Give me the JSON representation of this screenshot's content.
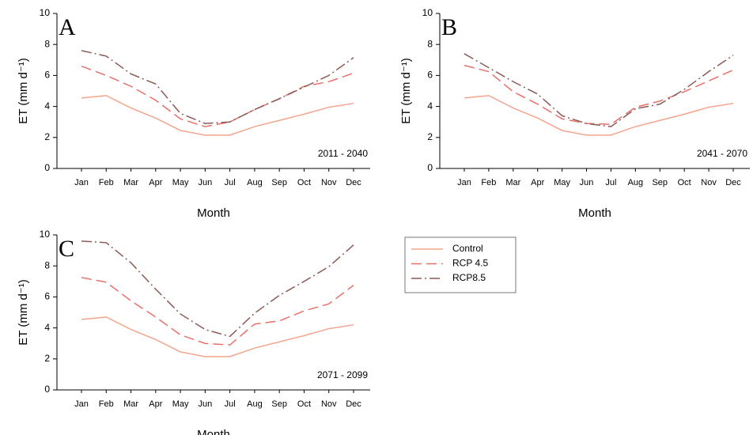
{
  "chart_data": [
    {
      "type": "line",
      "panel_label": "A",
      "period": "2011 - 2040",
      "xlabel": "Month",
      "ylabel": "ET (mm d⁻¹)",
      "categories": [
        "Jan",
        "Feb",
        "Mar",
        "Apr",
        "May",
        "Jun",
        "Jul",
        "Aug",
        "Sep",
        "Oct",
        "Nov",
        "Dec"
      ],
      "ylim": [
        0,
        10
      ],
      "yticks": [
        0,
        2,
        4,
        6,
        8,
        10
      ],
      "series": [
        {
          "name": "Control",
          "color": "#f4a58f",
          "style": "solid",
          "values": [
            4.55,
            4.7,
            3.9,
            3.25,
            2.45,
            2.15,
            2.15,
            2.7,
            3.1,
            3.5,
            3.95,
            4.2
          ]
        },
        {
          "name": "RCP 4.5",
          "color": "#e8706a",
          "style": "dashed",
          "values": [
            6.6,
            6.0,
            5.3,
            4.4,
            3.2,
            2.7,
            3.0,
            3.8,
            4.5,
            5.3,
            5.6,
            6.15
          ]
        },
        {
          "name": "RCP8.5",
          "color": "#8b5a56",
          "style": "dashdot",
          "values": [
            7.6,
            7.25,
            6.1,
            5.45,
            3.55,
            2.9,
            3.0,
            3.8,
            4.5,
            5.25,
            6.0,
            7.15
          ]
        }
      ]
    },
    {
      "type": "line",
      "panel_label": "B",
      "period": "2041 - 2070",
      "xlabel": "Month",
      "ylabel": "ET (mm d⁻¹)",
      "categories": [
        "Jan",
        "Feb",
        "Mar",
        "Apr",
        "May",
        "Jun",
        "Jul",
        "Aug",
        "Sep",
        "Oct",
        "Nov",
        "Dec"
      ],
      "ylim": [
        0,
        10
      ],
      "yticks": [
        0,
        2,
        4,
        6,
        8,
        10
      ],
      "series": [
        {
          "name": "Control",
          "color": "#f4a58f",
          "style": "solid",
          "values": [
            4.55,
            4.7,
            3.9,
            3.25,
            2.45,
            2.15,
            2.15,
            2.7,
            3.1,
            3.5,
            3.95,
            4.2
          ]
        },
        {
          "name": "RCP 4.5",
          "color": "#e8706a",
          "style": "dashed",
          "values": [
            6.65,
            6.25,
            4.95,
            4.15,
            3.2,
            2.9,
            2.85,
            3.95,
            4.35,
            4.95,
            5.65,
            6.35
          ]
        },
        {
          "name": "RCP8.5",
          "color": "#8b5a56",
          "style": "dashdot",
          "values": [
            7.4,
            6.5,
            5.6,
            4.8,
            3.4,
            2.9,
            2.7,
            3.85,
            4.15,
            5.1,
            6.25,
            7.3
          ]
        }
      ]
    },
    {
      "type": "line",
      "panel_label": "C",
      "period": "2071 - 2099",
      "xlabel": "Month",
      "ylabel": "ET (mm d⁻¹)",
      "categories": [
        "Jan",
        "Feb",
        "Mar",
        "Apr",
        "May",
        "Jun",
        "Jul",
        "Aug",
        "Sep",
        "Oct",
        "Nov",
        "Dec"
      ],
      "ylim": [
        0,
        10
      ],
      "yticks": [
        0,
        2,
        4,
        6,
        8,
        10
      ],
      "series": [
        {
          "name": "Control",
          "color": "#f4a58f",
          "style": "solid",
          "values": [
            4.55,
            4.7,
            3.9,
            3.25,
            2.45,
            2.15,
            2.15,
            2.7,
            3.1,
            3.5,
            3.95,
            4.2
          ]
        },
        {
          "name": "RCP 4.5",
          "color": "#e8706a",
          "style": "dashed",
          "values": [
            7.25,
            6.95,
            5.75,
            4.7,
            3.55,
            3.0,
            2.9,
            4.25,
            4.45,
            5.1,
            5.55,
            6.75
          ]
        },
        {
          "name": "RCP8.5",
          "color": "#8b5a56",
          "style": "dashdot",
          "values": [
            9.6,
            9.5,
            8.2,
            6.5,
            4.9,
            3.9,
            3.45,
            4.95,
            6.1,
            7.0,
            7.95,
            9.35
          ]
        }
      ]
    }
  ]
}
